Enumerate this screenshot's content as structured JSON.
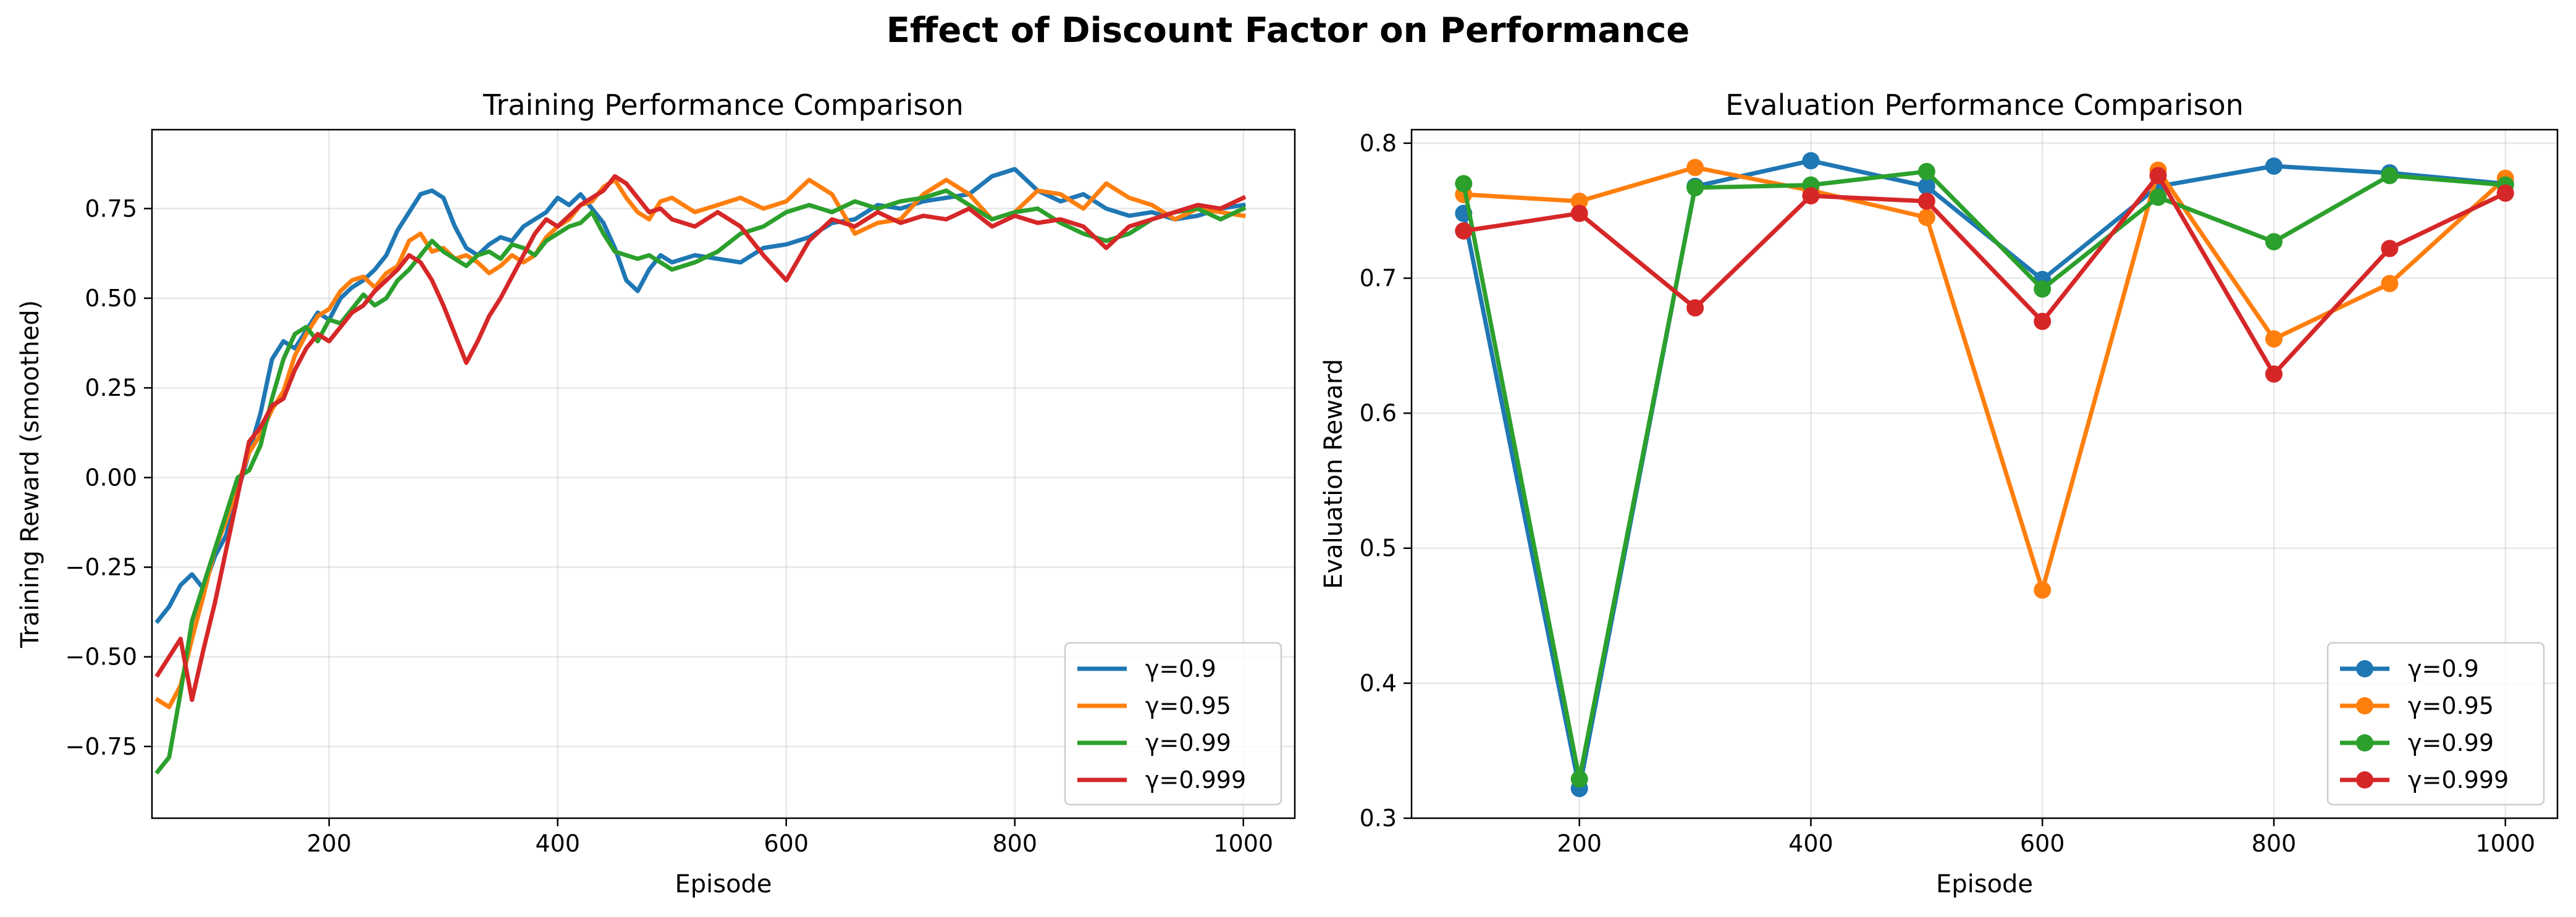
{
  "figure": {
    "title": "Effect of Discount Factor on Performance"
  },
  "colors": {
    "gamma_0_9": "#1f77b4",
    "gamma_0_95": "#ff7f0e",
    "gamma_0_99": "#2ca02c",
    "gamma_0_999": "#d62728"
  },
  "chart_data": [
    {
      "type": "line",
      "title": "Training Performance Comparison",
      "xlabel": "Episode",
      "ylabel": "Training Reward (smoothed)",
      "xlim": [
        45,
        1045
      ],
      "ylim": [
        -0.95,
        0.97
      ],
      "xticks": [
        200,
        400,
        600,
        800,
        1000
      ],
      "yticks": [
        -0.75,
        -0.5,
        -0.25,
        0.0,
        0.25,
        0.5,
        0.75
      ],
      "ytick_labels": [
        "−0.75",
        "−0.50",
        "−0.25",
        "0.00",
        "0.25",
        "0.50",
        "0.75"
      ],
      "grid": true,
      "legend_position": "lower-right",
      "series": [
        {
          "name": "γ=0.9",
          "color": "#1f77b4",
          "x": [
            50,
            60,
            70,
            80,
            90,
            100,
            110,
            120,
            130,
            140,
            150,
            160,
            170,
            180,
            190,
            200,
            210,
            220,
            230,
            240,
            250,
            260,
            270,
            280,
            290,
            300,
            310,
            320,
            330,
            340,
            350,
            360,
            370,
            380,
            390,
            400,
            410,
            420,
            430,
            440,
            450,
            460,
            470,
            480,
            490,
            500,
            520,
            540,
            560,
            580,
            600,
            620,
            640,
            660,
            680,
            700,
            720,
            740,
            760,
            780,
            800,
            820,
            840,
            860,
            880,
            900,
            920,
            940,
            960,
            980,
            1000
          ],
          "values": [
            -0.4,
            -0.36,
            -0.3,
            -0.27,
            -0.31,
            -0.22,
            -0.16,
            -0.04,
            0.07,
            0.18,
            0.33,
            0.38,
            0.36,
            0.41,
            0.46,
            0.44,
            0.5,
            0.53,
            0.55,
            0.58,
            0.62,
            0.69,
            0.74,
            0.79,
            0.8,
            0.78,
            0.7,
            0.64,
            0.62,
            0.65,
            0.67,
            0.66,
            0.7,
            0.72,
            0.74,
            0.78,
            0.76,
            0.79,
            0.75,
            0.71,
            0.64,
            0.55,
            0.52,
            0.58,
            0.62,
            0.6,
            0.62,
            0.61,
            0.6,
            0.64,
            0.65,
            0.67,
            0.71,
            0.72,
            0.76,
            0.75,
            0.77,
            0.78,
            0.79,
            0.84,
            0.86,
            0.8,
            0.77,
            0.79,
            0.75,
            0.73,
            0.74,
            0.72,
            0.73,
            0.75,
            0.76
          ]
        },
        {
          "name": "γ=0.95",
          "color": "#ff7f0e",
          "x": [
            50,
            60,
            70,
            80,
            90,
            100,
            110,
            120,
            130,
            140,
            150,
            160,
            170,
            180,
            190,
            200,
            210,
            220,
            230,
            240,
            250,
            260,
            270,
            280,
            290,
            300,
            310,
            320,
            330,
            340,
            350,
            360,
            370,
            380,
            390,
            400,
            410,
            420,
            430,
            440,
            450,
            460,
            470,
            480,
            490,
            500,
            520,
            540,
            560,
            580,
            600,
            620,
            640,
            660,
            680,
            700,
            720,
            740,
            760,
            780,
            800,
            820,
            840,
            860,
            880,
            900,
            920,
            940,
            960,
            980,
            1000
          ],
          "values": [
            -0.62,
            -0.64,
            -0.58,
            -0.45,
            -0.33,
            -0.2,
            -0.12,
            -0.02,
            0.07,
            0.12,
            0.19,
            0.24,
            0.34,
            0.4,
            0.45,
            0.47,
            0.52,
            0.55,
            0.56,
            0.53,
            0.57,
            0.59,
            0.66,
            0.68,
            0.63,
            0.64,
            0.61,
            0.62,
            0.6,
            0.57,
            0.59,
            0.62,
            0.6,
            0.62,
            0.67,
            0.7,
            0.72,
            0.76,
            0.77,
            0.81,
            0.83,
            0.78,
            0.74,
            0.72,
            0.77,
            0.78,
            0.74,
            0.76,
            0.78,
            0.75,
            0.77,
            0.83,
            0.79,
            0.68,
            0.71,
            0.72,
            0.79,
            0.83,
            0.79,
            0.72,
            0.74,
            0.8,
            0.79,
            0.75,
            0.82,
            0.78,
            0.76,
            0.72,
            0.75,
            0.74,
            0.73
          ]
        },
        {
          "name": "γ=0.99",
          "color": "#2ca02c",
          "x": [
            50,
            60,
            70,
            80,
            90,
            100,
            110,
            120,
            130,
            140,
            150,
            160,
            170,
            180,
            190,
            200,
            210,
            220,
            230,
            240,
            250,
            260,
            270,
            280,
            290,
            300,
            310,
            320,
            330,
            340,
            350,
            360,
            370,
            380,
            390,
            400,
            410,
            420,
            430,
            440,
            450,
            460,
            470,
            480,
            490,
            500,
            520,
            540,
            560,
            580,
            600,
            620,
            640,
            660,
            680,
            700,
            720,
            740,
            760,
            780,
            800,
            820,
            840,
            860,
            880,
            900,
            920,
            940,
            960,
            980,
            1000
          ],
          "values": [
            -0.82,
            -0.78,
            -0.6,
            -0.4,
            -0.3,
            -0.2,
            -0.1,
            0.0,
            0.02,
            0.09,
            0.22,
            0.33,
            0.4,
            0.42,
            0.38,
            0.44,
            0.43,
            0.47,
            0.51,
            0.48,
            0.5,
            0.55,
            0.58,
            0.62,
            0.66,
            0.63,
            0.61,
            0.59,
            0.62,
            0.63,
            0.61,
            0.65,
            0.64,
            0.62,
            0.66,
            0.68,
            0.7,
            0.71,
            0.74,
            0.68,
            0.63,
            0.62,
            0.61,
            0.62,
            0.6,
            0.58,
            0.6,
            0.63,
            0.68,
            0.7,
            0.74,
            0.76,
            0.74,
            0.77,
            0.75,
            0.77,
            0.78,
            0.8,
            0.76,
            0.72,
            0.74,
            0.75,
            0.71,
            0.68,
            0.66,
            0.68,
            0.72,
            0.74,
            0.75,
            0.72,
            0.75
          ]
        },
        {
          "name": "γ=0.999",
          "color": "#d62728",
          "x": [
            50,
            60,
            70,
            80,
            90,
            100,
            110,
            120,
            130,
            140,
            150,
            160,
            170,
            180,
            190,
            200,
            210,
            220,
            230,
            240,
            250,
            260,
            270,
            280,
            290,
            300,
            310,
            320,
            330,
            340,
            350,
            360,
            370,
            380,
            390,
            400,
            410,
            420,
            430,
            440,
            450,
            460,
            470,
            480,
            490,
            500,
            520,
            540,
            560,
            580,
            600,
            620,
            640,
            660,
            680,
            700,
            720,
            740,
            760,
            780,
            800,
            820,
            840,
            860,
            880,
            900,
            920,
            940,
            960,
            980,
            1000
          ],
          "values": [
            -0.55,
            -0.5,
            -0.45,
            -0.62,
            -0.48,
            -0.35,
            -0.2,
            -0.05,
            0.1,
            0.14,
            0.2,
            0.22,
            0.3,
            0.36,
            0.4,
            0.38,
            0.42,
            0.46,
            0.48,
            0.52,
            0.55,
            0.58,
            0.62,
            0.6,
            0.55,
            0.48,
            0.4,
            0.32,
            0.38,
            0.45,
            0.5,
            0.56,
            0.62,
            0.68,
            0.72,
            0.7,
            0.73,
            0.76,
            0.78,
            0.8,
            0.84,
            0.82,
            0.78,
            0.74,
            0.75,
            0.72,
            0.7,
            0.74,
            0.7,
            0.62,
            0.55,
            0.66,
            0.72,
            0.7,
            0.74,
            0.71,
            0.73,
            0.72,
            0.75,
            0.7,
            0.73,
            0.71,
            0.72,
            0.7,
            0.64,
            0.7,
            0.72,
            0.74,
            0.76,
            0.75,
            0.78
          ]
        }
      ]
    },
    {
      "type": "line",
      "title": "Evaluation Performance Comparison",
      "xlabel": "Episode",
      "ylabel": "Evaluation Reward",
      "xlim": [
        55,
        1045
      ],
      "ylim": [
        0.3,
        0.81
      ],
      "xticks": [
        200,
        400,
        600,
        800,
        1000
      ],
      "yticks": [
        0.3,
        0.4,
        0.5,
        0.6,
        0.7,
        0.8
      ],
      "ytick_labels": [
        "0.3",
        "0.4",
        "0.5",
        "0.6",
        "0.7",
        "0.8"
      ],
      "grid": true,
      "legend_position": "lower-right",
      "x": [
        100,
        200,
        300,
        400,
        500,
        600,
        700,
        800,
        900,
        1000
      ],
      "series": [
        {
          "name": "γ=0.9",
          "color": "#1f77b4",
          "values": [
            0.748,
            0.322,
            0.768,
            0.787,
            0.768,
            0.699,
            0.768,
            0.783,
            0.778,
            0.77
          ]
        },
        {
          "name": "γ=0.95",
          "color": "#ff7f0e",
          "values": [
            0.762,
            0.757,
            0.782,
            0.765,
            0.745,
            0.469,
            0.78,
            0.655,
            0.696,
            0.774
          ]
        },
        {
          "name": "γ=0.99",
          "color": "#2ca02c",
          "values": [
            0.77,
            0.329,
            0.767,
            0.769,
            0.779,
            0.692,
            0.76,
            0.727,
            0.776,
            0.769
          ]
        },
        {
          "name": "γ=0.999",
          "color": "#d62728",
          "values": [
            0.735,
            0.748,
            0.678,
            0.761,
            0.757,
            0.668,
            0.776,
            0.629,
            0.722,
            0.763
          ]
        }
      ]
    }
  ]
}
